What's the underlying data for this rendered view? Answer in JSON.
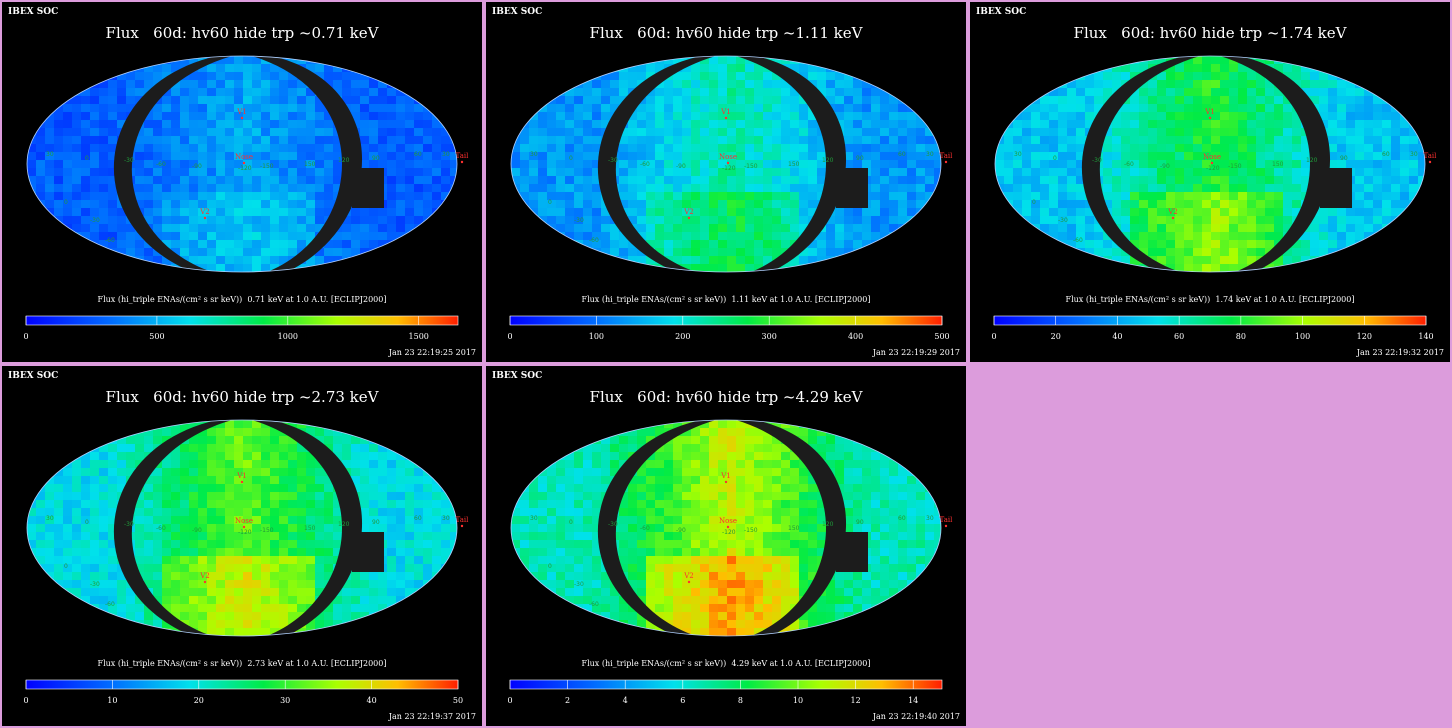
{
  "chart_data": [
    {
      "type": "heatmap",
      "header": "IBEX SOC",
      "title": "Flux   60d: hv60 hide trp ~0.71 keV",
      "colorbar_label": "Flux (hi_triple ENAs/(cm² s sr keV))  0.71 keV at 1.0 A.U. [ECLIPJ2000]",
      "colorbar_ticks": [
        "0",
        "500",
        "1000",
        "1500"
      ],
      "colorbar_range": [
        0,
        1650
      ],
      "timestamp": "Jan 23 22:19:25 2017",
      "intensity": 0.22,
      "grid_labels": [
        "30",
        "0",
        "-30",
        "-60",
        "-90",
        "-120",
        "-150",
        "150",
        "120",
        "90",
        "60",
        "30",
        "0",
        "-30",
        "-60"
      ],
      "markers": {
        "v1": "V1",
        "nose": "Nose",
        "v2": "V2",
        "tail": "Tail"
      }
    },
    {
      "type": "heatmap",
      "header": "IBEX SOC",
      "title": "Flux   60d: hv60 hide trp ~1.11 keV",
      "colorbar_label": "Flux (hi_triple ENAs/(cm² s sr keV))  1.11 keV at 1.0 A.U. [ECLIPJ2000]",
      "colorbar_ticks": [
        "0",
        "100",
        "200",
        "300",
        "400",
        "500"
      ],
      "colorbar_range": [
        0,
        500
      ],
      "timestamp": "Jan 23 22:19:29 2017",
      "intensity": 0.35,
      "grid_labels": [
        "30",
        "0",
        "-30",
        "-60",
        "-90",
        "-120",
        "-150",
        "150",
        "120",
        "90",
        "60",
        "30",
        "0",
        "-30",
        "-60"
      ],
      "markers": {
        "v1": "V1",
        "nose": "Nose",
        "v2": "V2",
        "tail": "Tail"
      }
    },
    {
      "type": "heatmap",
      "header": "IBEX SOC",
      "title": "Flux   60d: hv60 hide trp ~1.74 keV",
      "colorbar_label": "Flux (hi_triple ENAs/(cm² s sr keV))  1.74 keV at 1.0 A.U. [ECLIPJ2000]",
      "colorbar_ticks": [
        "0",
        "20",
        "40",
        "60",
        "80",
        "100",
        "120",
        "140"
      ],
      "colorbar_range": [
        0,
        140
      ],
      "timestamp": "Jan 23 22:19:32 2017",
      "intensity": 0.45,
      "grid_labels": [
        "30",
        "0",
        "-30",
        "-60",
        "-90",
        "-120",
        "-150",
        "150",
        "120",
        "90",
        "60",
        "30",
        "0",
        "-30",
        "-60"
      ],
      "markers": {
        "v1": "V1",
        "nose": "Nose",
        "v2": "V2",
        "tail": "Tail"
      }
    },
    {
      "type": "heatmap",
      "header": "IBEX SOC",
      "title": "Flux   60d: hv60 hide trp ~2.73 keV",
      "colorbar_label": "Flux (hi_triple ENAs/(cm² s sr keV))  2.73 keV at 1.0 A.U. [ECLIPJ2000]",
      "colorbar_ticks": [
        "0",
        "10",
        "20",
        "30",
        "40",
        "50"
      ],
      "colorbar_range": [
        0,
        50
      ],
      "timestamp": "Jan 23 22:19:37 2017",
      "intensity": 0.5,
      "grid_labels": [
        "30",
        "0",
        "-30",
        "-60",
        "-90",
        "-120",
        "-150",
        "150",
        "120",
        "90",
        "60",
        "30",
        "0",
        "-30",
        "-60"
      ],
      "markers": {
        "v1": "V1",
        "nose": "Nose",
        "v2": "V2",
        "tail": "Tail"
      }
    },
    {
      "type": "heatmap",
      "header": "IBEX SOC",
      "title": "Flux   60d: hv60 hide trp ~4.29 keV",
      "colorbar_label": "Flux (hi_triple ENAs/(cm² s sr keV))  4.29 keV at 1.0 A.U. [ECLIPJ2000]",
      "colorbar_ticks": [
        "0",
        "2",
        "4",
        "6",
        "8",
        "10",
        "12",
        "14"
      ],
      "colorbar_range": [
        0,
        15
      ],
      "timestamp": "Jan 23 22:19:40 2017",
      "intensity": 0.58,
      "grid_labels": [
        "30",
        "0",
        "-30",
        "-60",
        "-90",
        "-120",
        "-150",
        "150",
        "120",
        "90",
        "60",
        "30",
        "0",
        "-30",
        "-60"
      ],
      "markers": {
        "v1": "V1",
        "nose": "Nose",
        "v2": "V2",
        "tail": "Tail"
      }
    }
  ],
  "colors": {
    "background": "#dc9cdc",
    "panel": "#000000",
    "mask": "#1c1c1c",
    "marker": "#ff3030",
    "grid_label": "#1f9a3a"
  }
}
